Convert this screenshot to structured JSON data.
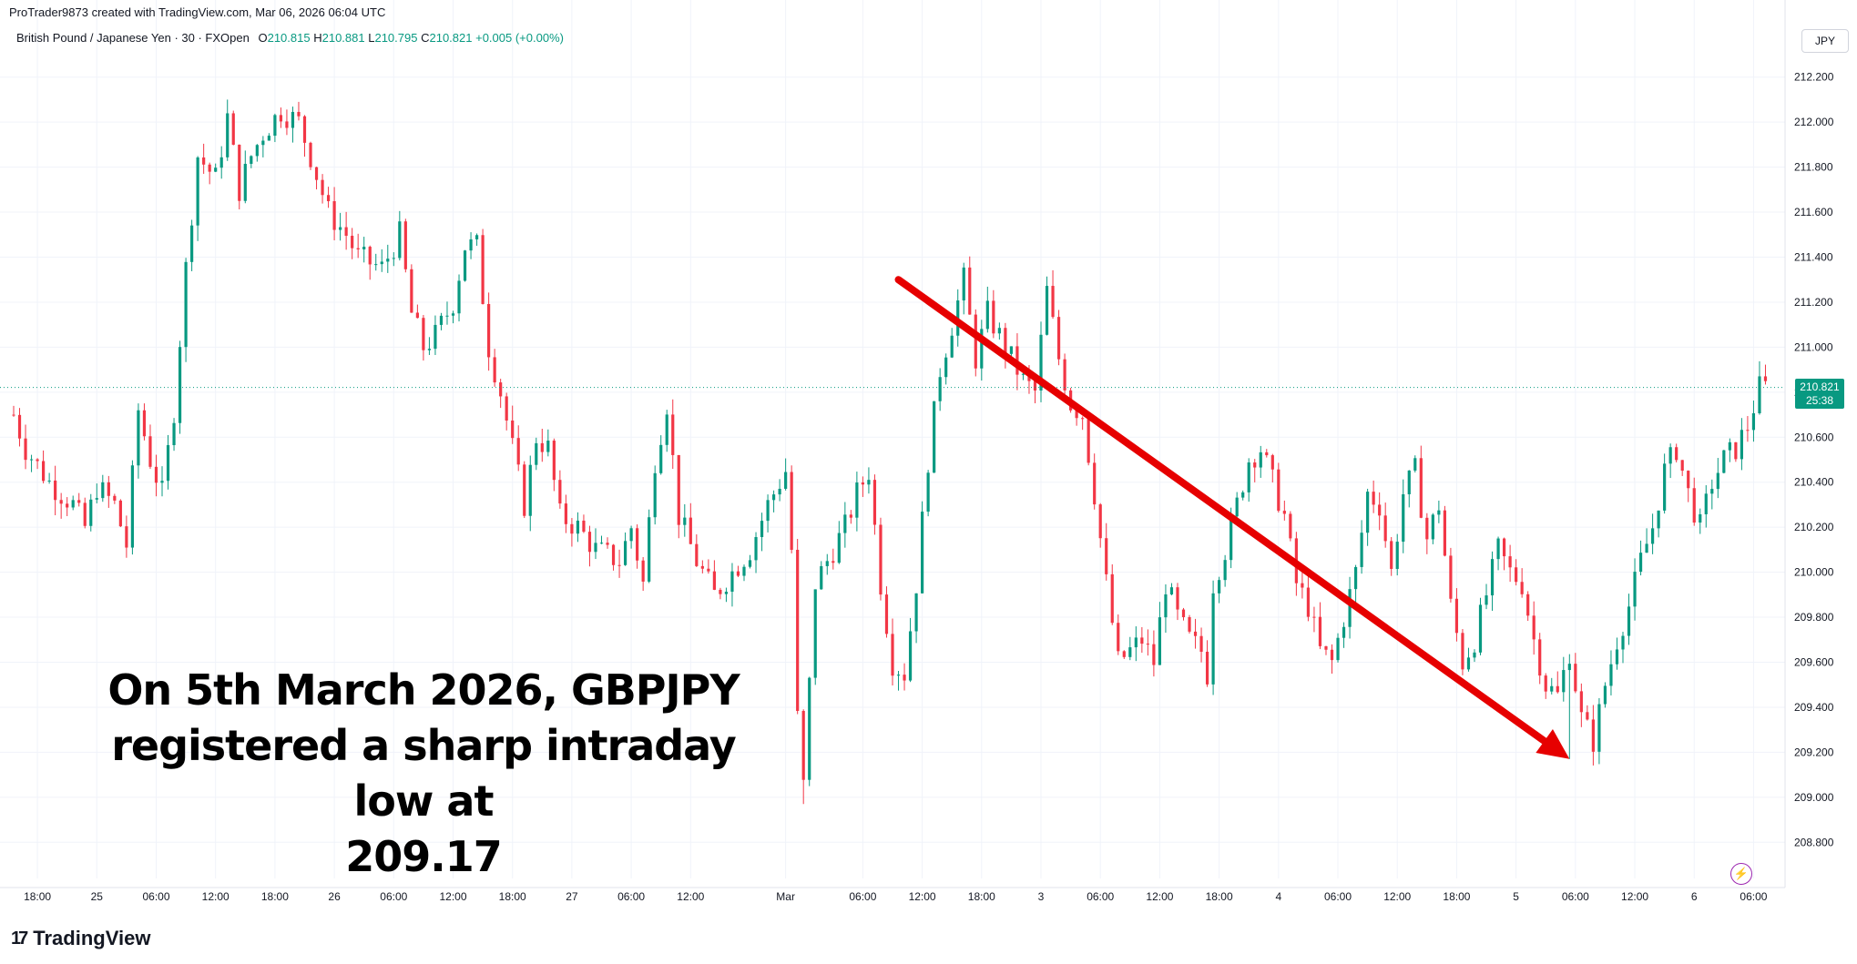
{
  "header": {
    "caption": "ProTrader9873 created with TradingView.com, Mar 06, 2026 06:04 UTC",
    "symbol": "British Pound / Japanese Yen · 30 · FXOpen",
    "o_label": "O",
    "o_value": "210.815",
    "h_label": "H",
    "h_value": "210.881",
    "l_label": "L",
    "l_value": "210.795",
    "c_label": "C",
    "c_value": "210.821",
    "change": "+0.005 (+0.00%)",
    "currency": "JPY"
  },
  "annotation": {
    "line1": "On 5th March 2026, GBPJPY",
    "line2": "registered a sharp intraday low at",
    "line3": "209.17"
  },
  "price_tag": {
    "price": "210.821",
    "countdown": "25:38"
  },
  "brand": {
    "name": "TradingView",
    "logo_icon": "tradingview-logo-icon"
  },
  "colors": {
    "up": "#089981",
    "down": "#f23645",
    "arrow": "#e60000",
    "grid": "#f0f3fa",
    "text": "#131722"
  },
  "chart_data": {
    "type": "candlestick",
    "symbol": "GBPJPY",
    "interval": "30",
    "ylim": [
      208.7,
      212.3
    ],
    "y_ticks": [
      208.8,
      209.0,
      209.2,
      209.4,
      209.6,
      209.8,
      210.0,
      210.2,
      210.4,
      210.6,
      210.8,
      211.0,
      211.2,
      211.4,
      211.6,
      211.8,
      212.0,
      212.2
    ],
    "y_tick_labels": [
      "208.800",
      "209.000",
      "209.200",
      "209.400",
      "209.600",
      "209.800",
      "210.000",
      "210.200",
      "210.400",
      "210.600",
      "210.800",
      "211.000",
      "211.200",
      "211.400",
      "211.600",
      "211.800",
      "212.000",
      "212.200"
    ],
    "x_tick_labels": [
      "18:00",
      "25",
      "06:00",
      "12:00",
      "18:00",
      "26",
      "06:00",
      "12:00",
      "18:00",
      "27",
      "06:00",
      "12:00",
      "Mar",
      "06:00",
      "12:00",
      "18:00",
      "3",
      "06:00",
      "12:00",
      "18:00",
      "4",
      "06:00",
      "12:00",
      "18:00",
      "5",
      "06:00",
      "12:00",
      "6",
      "06:00"
    ],
    "x_tick_index": [
      4,
      14,
      24,
      34,
      44,
      54,
      64,
      74,
      84,
      94,
      104,
      114,
      130,
      143,
      153,
      163,
      173,
      183,
      193,
      203,
      213,
      223,
      233,
      243,
      253,
      263,
      273,
      283,
      293
    ],
    "grid": true,
    "last_price": 210.821,
    "anchors": [
      [
        0,
        210.7
      ],
      [
        2,
        210.55
      ],
      [
        6,
        210.4
      ],
      [
        10,
        210.3
      ],
      [
        12,
        210.2
      ],
      [
        14,
        210.38
      ],
      [
        17,
        210.3
      ],
      [
        19,
        210.12
      ],
      [
        21,
        210.72
      ],
      [
        23,
        210.5
      ],
      [
        25,
        210.35
      ],
      [
        27,
        210.72
      ],
      [
        29,
        211.35
      ],
      [
        31,
        211.85
      ],
      [
        34,
        211.75
      ],
      [
        36,
        212.02
      ],
      [
        38,
        211.7
      ],
      [
        40,
        211.85
      ],
      [
        42,
        211.95
      ],
      [
        45,
        212.05
      ],
      [
        48,
        212.0
      ],
      [
        50,
        211.85
      ],
      [
        53,
        211.6
      ],
      [
        56,
        211.5
      ],
      [
        58,
        211.4
      ],
      [
        62,
        211.35
      ],
      [
        65,
        211.5
      ],
      [
        67,
        211.15
      ],
      [
        69,
        211.0
      ],
      [
        71,
        211.05
      ],
      [
        74,
        211.2
      ],
      [
        76,
        211.45
      ],
      [
        78,
        211.45
      ],
      [
        80,
        211.0
      ],
      [
        82,
        210.8
      ],
      [
        84,
        210.55
      ],
      [
        86,
        210.3
      ],
      [
        88,
        210.6
      ],
      [
        90,
        210.55
      ],
      [
        92,
        210.25
      ],
      [
        95,
        210.2
      ],
      [
        98,
        210.1
      ],
      [
        102,
        210.05
      ],
      [
        104,
        210.2
      ],
      [
        106,
        209.95
      ],
      [
        108,
        210.5
      ],
      [
        110,
        210.75
      ],
      [
        112,
        210.25
      ],
      [
        115,
        210.05
      ],
      [
        118,
        209.9
      ],
      [
        121,
        210.0
      ],
      [
        124,
        210.1
      ],
      [
        127,
        210.3
      ],
      [
        130,
        210.45
      ],
      [
        131,
        210.1
      ],
      [
        132,
        209.35
      ],
      [
        133,
        209.05
      ],
      [
        134,
        209.5
      ],
      [
        135,
        209.95
      ],
      [
        138,
        210.1
      ],
      [
        140,
        210.2
      ],
      [
        142,
        210.35
      ],
      [
        144,
        210.45
      ],
      [
        146,
        209.95
      ],
      [
        148,
        209.6
      ],
      [
        150,
        209.55
      ],
      [
        152,
        209.95
      ],
      [
        154,
        210.5
      ],
      [
        156,
        210.9
      ],
      [
        158,
        211.1
      ],
      [
        160,
        211.3
      ],
      [
        162,
        210.95
      ],
      [
        164,
        211.15
      ],
      [
        166,
        211.05
      ],
      [
        168,
        210.95
      ],
      [
        170,
        210.85
      ],
      [
        172,
        210.8
      ],
      [
        174,
        211.25
      ],
      [
        176,
        210.95
      ],
      [
        178,
        210.75
      ],
      [
        180,
        210.7
      ],
      [
        182,
        210.35
      ],
      [
        184,
        209.95
      ],
      [
        186,
        209.6
      ],
      [
        188,
        209.65
      ],
      [
        190,
        209.7
      ],
      [
        192,
        209.6
      ],
      [
        194,
        209.95
      ],
      [
        196,
        209.8
      ],
      [
        198,
        209.7
      ],
      [
        200,
        209.65
      ],
      [
        201,
        209.55
      ],
      [
        202,
        209.95
      ],
      [
        204,
        210.1
      ],
      [
        206,
        210.3
      ],
      [
        208,
        210.5
      ],
      [
        210,
        210.55
      ],
      [
        212,
        210.4
      ],
      [
        214,
        210.25
      ],
      [
        216,
        209.95
      ],
      [
        218,
        209.85
      ],
      [
        220,
        209.65
      ],
      [
        222,
        209.6
      ],
      [
        224,
        209.8
      ],
      [
        226,
        210.0
      ],
      [
        228,
        210.35
      ],
      [
        230,
        210.3
      ],
      [
        232,
        210.0
      ],
      [
        234,
        210.35
      ],
      [
        236,
        210.45
      ],
      [
        238,
        210.15
      ],
      [
        240,
        210.3
      ],
      [
        242,
        209.85
      ],
      [
        244,
        209.6
      ],
      [
        246,
        209.7
      ],
      [
        248,
        209.9
      ],
      [
        250,
        210.1
      ],
      [
        252,
        210.0
      ],
      [
        254,
        209.95
      ],
      [
        256,
        209.7
      ],
      [
        258,
        209.5
      ],
      [
        260,
        209.45
      ],
      [
        262,
        209.65
      ],
      [
        264,
        209.35
      ],
      [
        266,
        209.25
      ],
      [
        268,
        209.5
      ],
      [
        270,
        209.7
      ],
      [
        272,
        209.85
      ],
      [
        274,
        210.05
      ],
      [
        276,
        210.2
      ],
      [
        278,
        210.45
      ],
      [
        280,
        210.55
      ],
      [
        282,
        210.35
      ],
      [
        284,
        210.2
      ],
      [
        286,
        210.4
      ],
      [
        288,
        210.5
      ],
      [
        290,
        210.55
      ],
      [
        292,
        210.65
      ],
      [
        294,
        210.82
      ],
      [
        295,
        210.82
      ]
    ],
    "candle_count": 296,
    "arrow_from": [
      149,
      211.3
    ],
    "arrow_to": [
      262,
      209.17
    ],
    "annotation_low": 209.17
  }
}
